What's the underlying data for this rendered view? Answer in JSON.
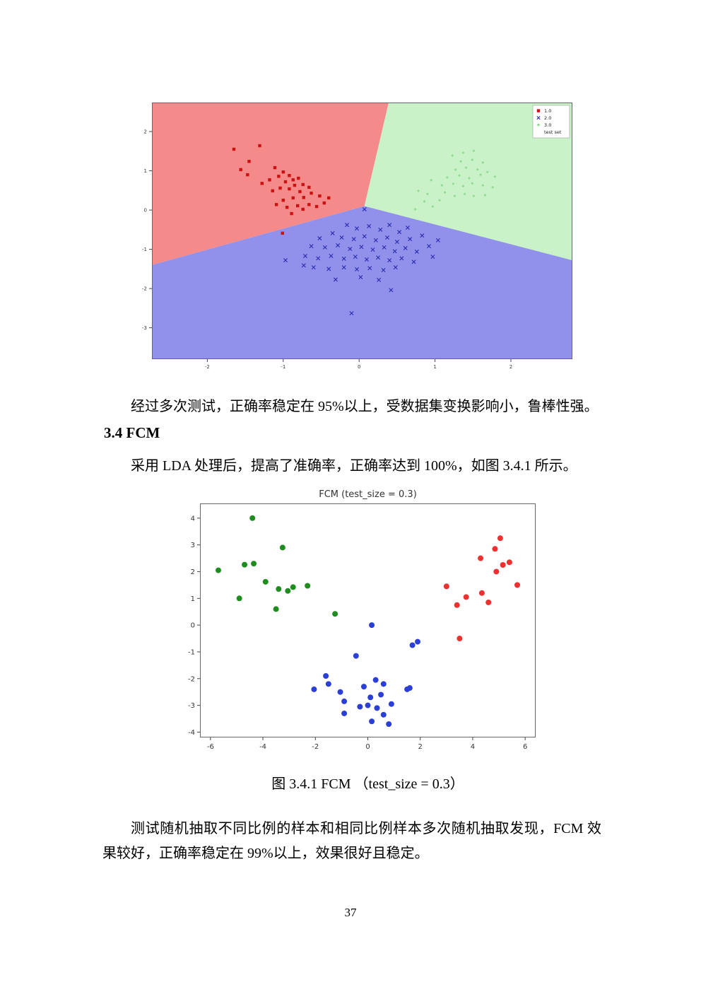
{
  "document": {
    "paragraph_lda_result": "经过多次测试，正确率稳定在 95%以上，受数据集变换影响小，鲁棒性强。",
    "section_heading": "3.4 FCM",
    "paragraph_fcm_intro": "采用 LDA 处理后，提高了准确率，正确率达到 100%，如图 3.4.1 所示。",
    "figure_caption": "图 3.4.1 FCM （test_size = 0.3）",
    "paragraph_fcm_result": "测试随机抽取不同比例的样本和相同比例样本多次随机抽取发现，FCM 效果较好，正确率稳定在 99%以上，效果很好且稳定。",
    "page_number": "37"
  },
  "chart_data": [
    {
      "type": "scatter",
      "title": "",
      "xlabel": "",
      "ylabel": "",
      "xlim": [
        -2.73,
        2.81
      ],
      "ylim": [
        -3.8,
        2.74
      ],
      "xticks": [
        -2,
        -1,
        0,
        1,
        2
      ],
      "yticks": [
        -3,
        -2,
        -1,
        0,
        1,
        2
      ],
      "tick_fontsize": 7,
      "grid": false,
      "legend_position": "upper right",
      "regions": [
        {
          "name": "class-1-region",
          "color": "#f58a8a",
          "points": [
            [
              -2.73,
              2.74
            ],
            [
              0.39,
              2.74
            ],
            [
              0.07,
              0.1
            ],
            [
              -2.73,
              -1.4
            ]
          ]
        },
        {
          "name": "class-3-region",
          "color": "#c9f2c9",
          "points": [
            [
              0.39,
              2.74
            ],
            [
              2.81,
              2.74
            ],
            [
              2.81,
              -1.28
            ],
            [
              0.07,
              0.1
            ]
          ]
        },
        {
          "name": "class-2-region",
          "color": "#9191ec",
          "points": [
            [
              -2.73,
              -1.4
            ],
            [
              0.07,
              0.1
            ],
            [
              2.81,
              -1.28
            ],
            [
              2.81,
              -3.8
            ],
            [
              -2.73,
              -3.8
            ]
          ]
        }
      ],
      "legend": {
        "items": [
          {
            "label": "1.0",
            "marker": "square",
            "color": "#cc1111"
          },
          {
            "label": "2.0",
            "marker": "x",
            "color": "#2a2ab0"
          },
          {
            "label": "3.0",
            "marker": "diamond",
            "color": "#90dc90"
          },
          {
            "label": "test set",
            "marker": "none",
            "color": "#ffffff"
          }
        ]
      },
      "series": [
        {
          "name": "1.0",
          "marker": "square",
          "color": "#cc1111",
          "size": 2.2,
          "points": [
            [
              -1.65,
              1.55
            ],
            [
              -1.31,
              1.64
            ],
            [
              -1.45,
              1.24
            ],
            [
              -1.11,
              1.08
            ],
            [
              -1.0,
              0.97
            ],
            [
              -1.06,
              0.86
            ],
            [
              -0.92,
              0.88
            ],
            [
              -0.87,
              0.77
            ],
            [
              -0.8,
              0.81
            ],
            [
              -0.97,
              0.72
            ],
            [
              -1.18,
              0.77
            ],
            [
              -1.28,
              0.68
            ],
            [
              -0.85,
              0.63
            ],
            [
              -0.74,
              0.65
            ],
            [
              -0.66,
              0.58
            ],
            [
              -0.92,
              0.54
            ],
            [
              -1.04,
              0.56
            ],
            [
              -1.14,
              0.49
            ],
            [
              -0.78,
              0.47
            ],
            [
              -0.63,
              0.43
            ],
            [
              -0.52,
              0.36
            ],
            [
              -0.73,
              0.32
            ],
            [
              -0.87,
              0.31
            ],
            [
              -1.0,
              0.25
            ],
            [
              -1.09,
              0.14
            ],
            [
              -0.95,
              0.07
            ],
            [
              -0.81,
              0.11
            ],
            [
              -0.66,
              0.14
            ],
            [
              -0.56,
              0.09
            ],
            [
              -0.46,
              0.18
            ],
            [
              -1.47,
              0.9
            ],
            [
              -1.56,
              1.03
            ],
            [
              -0.74,
              0.02
            ],
            [
              -0.89,
              -0.09
            ],
            [
              -1.01,
              -0.59
            ],
            [
              -0.4,
              0.31
            ]
          ]
        },
        {
          "name": "2.0",
          "marker": "x",
          "color": "#2a2ab0",
          "size": 2.6,
          "points": [
            [
              0.07,
              0.02
            ],
            [
              -0.16,
              -0.38
            ],
            [
              -0.03,
              -0.47
            ],
            [
              0.13,
              -0.41
            ],
            [
              0.28,
              -0.5
            ],
            [
              0.4,
              -0.38
            ],
            [
              0.53,
              -0.56
            ],
            [
              0.64,
              -0.45
            ],
            [
              -0.35,
              -0.59
            ],
            [
              -0.52,
              -0.72
            ],
            [
              -0.23,
              -0.7
            ],
            [
              -0.07,
              -0.74
            ],
            [
              0.07,
              -0.67
            ],
            [
              0.22,
              -0.77
            ],
            [
              0.37,
              -0.7
            ],
            [
              0.5,
              -0.81
            ],
            [
              0.67,
              -0.74
            ],
            [
              0.83,
              -0.65
            ],
            [
              -0.63,
              -0.92
            ],
            [
              -0.45,
              -0.95
            ],
            [
              -0.28,
              -0.9
            ],
            [
              -0.12,
              -0.99
            ],
            [
              0.03,
              -0.94
            ],
            [
              0.18,
              -1.01
            ],
            [
              0.33,
              -0.95
            ],
            [
              0.47,
              -1.05
            ],
            [
              0.61,
              -0.97
            ],
            [
              0.76,
              -1.06
            ],
            [
              0.92,
              -0.92
            ],
            [
              -0.71,
              -1.17
            ],
            [
              -0.54,
              -1.23
            ],
            [
              -0.37,
              -1.17
            ],
            [
              -0.2,
              -1.24
            ],
            [
              -0.05,
              -1.19
            ],
            [
              0.1,
              -1.26
            ],
            [
              0.25,
              -1.21
            ],
            [
              0.4,
              -1.28
            ],
            [
              0.56,
              -1.23
            ],
            [
              -0.6,
              -1.46
            ],
            [
              -0.4,
              -1.5
            ],
            [
              -0.2,
              -1.46
            ],
            [
              -0.03,
              -1.51
            ],
            [
              0.14,
              -1.48
            ],
            [
              0.32,
              -1.53
            ],
            [
              0.48,
              -1.46
            ],
            [
              0.02,
              -1.71
            ],
            [
              0.26,
              -1.78
            ],
            [
              0.42,
              -2.04
            ],
            [
              -0.1,
              -2.63
            ],
            [
              1.04,
              -0.77
            ],
            [
              0.97,
              -1.19
            ],
            [
              0.72,
              -1.32
            ],
            [
              -0.31,
              -1.77
            ],
            [
              -0.73,
              -1.41
            ],
            [
              -0.97,
              -1.28
            ]
          ]
        },
        {
          "name": "3.0",
          "marker": "diamond",
          "color": "#90dc90",
          "size": 2.0,
          "points": [
            [
              0.74,
              0.02
            ],
            [
              0.86,
              0.22
            ],
            [
              0.97,
              0.09
            ],
            [
              1.06,
              0.25
            ],
            [
              0.9,
              0.41
            ],
            [
              1.13,
              0.45
            ],
            [
              1.26,
              0.36
            ],
            [
              1.39,
              0.41
            ],
            [
              1.51,
              0.36
            ],
            [
              1.09,
              0.63
            ],
            [
              1.24,
              0.67
            ],
            [
              1.37,
              0.61
            ],
            [
              1.49,
              0.68
            ],
            [
              1.63,
              0.63
            ],
            [
              1.76,
              0.58
            ],
            [
              1.16,
              0.83
            ],
            [
              1.32,
              0.88
            ],
            [
              1.45,
              0.81
            ],
            [
              1.6,
              0.9
            ],
            [
              1.27,
              1.03
            ],
            [
              1.41,
              1.08
            ],
            [
              1.56,
              1.03
            ],
            [
              1.69,
              0.97
            ],
            [
              1.34,
              1.24
            ],
            [
              1.49,
              1.28
            ],
            [
              1.63,
              1.21
            ],
            [
              1.37,
              1.46
            ],
            [
              1.51,
              1.51
            ],
            [
              1.23,
              1.39
            ],
            [
              1.79,
              0.85
            ],
            [
              0.78,
              0.49
            ],
            [
              0.95,
              0.76
            ],
            [
              1.66,
              0.38
            ]
          ]
        }
      ]
    },
    {
      "type": "scatter",
      "title": "FCM (test_size = 0.3)",
      "title_fontsize": 13,
      "xlabel": "",
      "ylabel": "",
      "xlim": [
        -6.4,
        6.4
      ],
      "ylim": [
        -4.2,
        4.55
      ],
      "xticks": [
        -6,
        -4,
        -2,
        0,
        2,
        4,
        6
      ],
      "yticks": [
        -4,
        -3,
        -2,
        -1,
        0,
        1,
        2,
        3,
        4
      ],
      "tick_fontsize": 10,
      "grid": false,
      "series": [
        {
          "name": "cluster-green",
          "marker": "circle",
          "color": "#1e8c1e",
          "size": 4,
          "points": [
            [
              -5.7,
              2.05
            ],
            [
              -4.7,
              2.26
            ],
            [
              -4.35,
              2.3
            ],
            [
              -4.4,
              4.0
            ],
            [
              -3.25,
              2.9
            ],
            [
              -4.9,
              1.0
            ],
            [
              -3.9,
              1.62
            ],
            [
              -3.4,
              1.35
            ],
            [
              -2.85,
              1.42
            ],
            [
              -2.3,
              1.47
            ],
            [
              -3.5,
              0.6
            ],
            [
              -1.25,
              0.42
            ],
            [
              -3.05,
              1.28
            ]
          ]
        },
        {
          "name": "cluster-red",
          "marker": "circle",
          "color": "#ee3030",
          "size": 4,
          "points": [
            [
              5.05,
              3.25
            ],
            [
              4.85,
              2.85
            ],
            [
              4.3,
              2.5
            ],
            [
              5.15,
              2.25
            ],
            [
              4.9,
              2.0
            ],
            [
              5.7,
              1.5
            ],
            [
              3.0,
              1.45
            ],
            [
              3.4,
              0.75
            ],
            [
              3.75,
              1.05
            ],
            [
              4.35,
              1.2
            ],
            [
              4.6,
              0.85
            ],
            [
              3.5,
              -0.5
            ],
            [
              5.4,
              2.35
            ]
          ]
        },
        {
          "name": "cluster-blue",
          "marker": "circle",
          "color": "#2b3fd6",
          "size": 4,
          "points": [
            [
              0.15,
              0.0
            ],
            [
              1.7,
              -0.75
            ],
            [
              1.9,
              -0.62
            ],
            [
              -0.45,
              -1.15
            ],
            [
              -1.6,
              -1.9
            ],
            [
              -1.5,
              -2.2
            ],
            [
              -2.05,
              -2.4
            ],
            [
              -1.05,
              -2.5
            ],
            [
              -0.9,
              -2.85
            ],
            [
              0.3,
              -2.05
            ],
            [
              0.6,
              -2.2
            ],
            [
              0.5,
              -2.6
            ],
            [
              0.1,
              -2.7
            ],
            [
              0.0,
              -3.0
            ],
            [
              0.35,
              -3.1
            ],
            [
              -0.3,
              -3.05
            ],
            [
              -0.9,
              -3.3
            ],
            [
              0.15,
              -3.6
            ],
            [
              0.6,
              -3.35
            ],
            [
              0.8,
              -3.7
            ],
            [
              1.5,
              -2.4
            ],
            [
              -0.15,
              -2.3
            ],
            [
              0.9,
              -2.95
            ],
            [
              1.6,
              -2.35
            ]
          ]
        }
      ]
    }
  ]
}
